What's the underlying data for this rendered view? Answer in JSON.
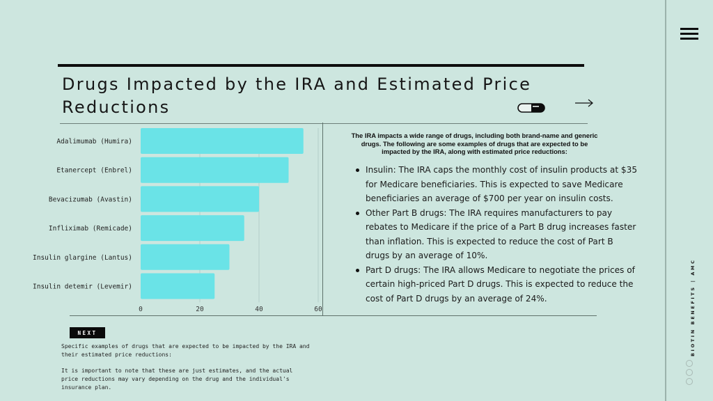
{
  "header": {
    "title": "Drugs Impacted by the IRA and Estimated Price Reductions",
    "pill_icon": "pill-capsule-icon",
    "arrow_icon": "arrow-right-icon"
  },
  "chart_data": {
    "type": "bar",
    "orientation": "horizontal",
    "title": "",
    "xlabel": "",
    "ylabel": "",
    "categories": [
      "Adalimumab (Humira)",
      "Etanercept (Enbrel)",
      "Bevacizumab (Avastin)",
      "Infliximab (Remicade)",
      "Insulin glargine (Lantus)",
      "Insulin detemir (Levemir)"
    ],
    "values": [
      55,
      50,
      40,
      35,
      30,
      25
    ],
    "xlim": [
      0,
      60
    ],
    "xticks": [
      "0",
      "20",
      "40",
      "60"
    ],
    "grid": "vertical",
    "legend": "none",
    "bar_color": "#6ae3e7"
  },
  "intro": "The IRA impacts a wide range of drugs, including both brand-name and generic drugs. The following are some examples of drugs that are expected to be impacted by the IRA, along with estimated price reductions:",
  "bullets": [
    "Insulin: The IRA caps the monthly cost of insulin products at $35 for Medicare beneficiaries. This is expected to save Medicare beneficiaries an average of $700 per year on insulin costs.",
    "Other Part B drugs: The IRA requires manufacturers to pay rebates to Medicare if the price of a Part B drug increases faster than inflation. This is expected to reduce the cost of Part B drugs by an average of 10%.",
    "Part D drugs: The IRA allows Medicare to negotiate the prices of certain high-priced Part D drugs. This is expected to reduce the cost of Part D drugs by an average of 24%."
  ],
  "next_label": "NEXT",
  "footnote": [
    "Specific examples of drugs that are expected to be impacted by the IRA and their estimated price reductions:",
    "It is important to note that these are just estimates, and the actual price reductions may vary depending on the drug and the individual's insurance plan."
  ],
  "sidebar": {
    "menu_icon": "hamburger-menu-icon",
    "brand": "BIOTIN BENEFITS | AMC",
    "page_dots": 3
  }
}
